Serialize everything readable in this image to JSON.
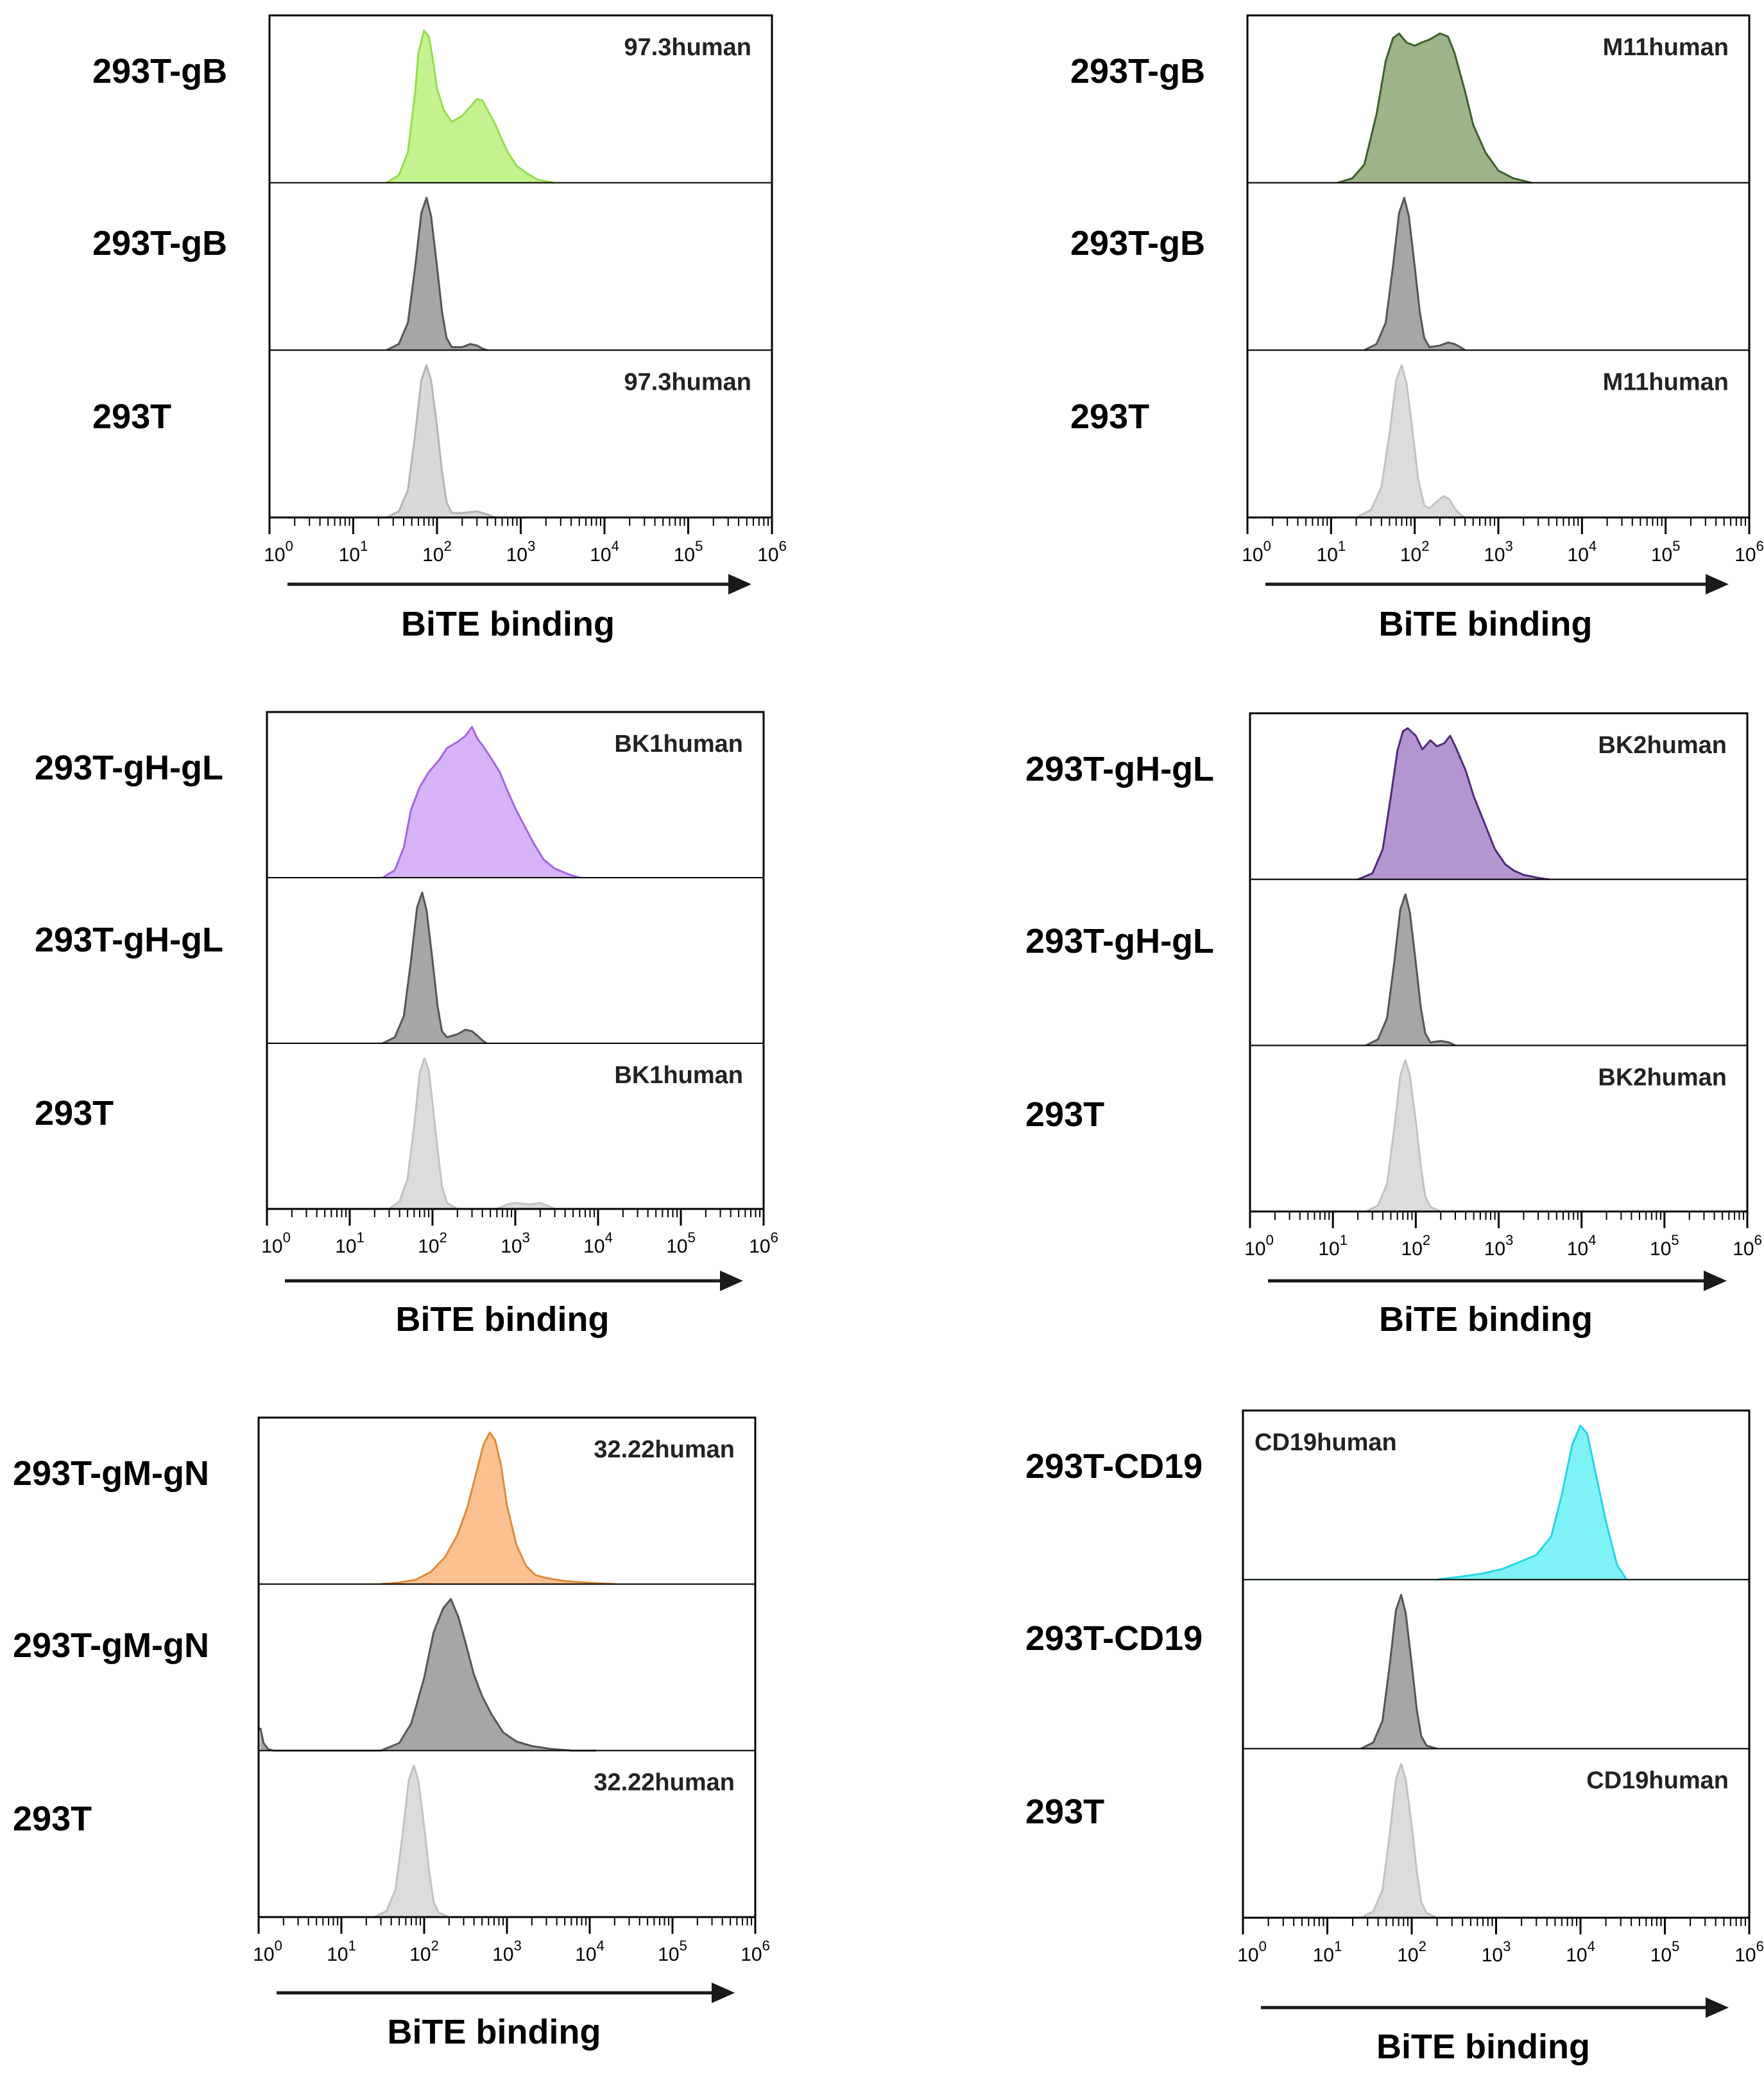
{
  "figure": {
    "x_axis_label": "BiTE binding",
    "tick_labels": [
      {
        "base": "10",
        "exp": "0"
      },
      {
        "base": "10",
        "exp": "1"
      },
      {
        "base": "10",
        "exp": "2"
      },
      {
        "base": "10",
        "exp": "3"
      },
      {
        "base": "10",
        "exp": "4"
      },
      {
        "base": "10",
        "exp": "5"
      },
      {
        "base": "10",
        "exp": "6"
      }
    ]
  },
  "chart_data": [
    {
      "type": "histogram",
      "panel": "top-left",
      "xlabel": "BiTE binding",
      "xscale": "log",
      "xlim": [
        1,
        1000000
      ],
      "tracks": [
        {
          "label": "293T-gB",
          "annotation": "97.3human",
          "annotation_pos": "right",
          "color": "#c3f28e",
          "stroke": "#95de4f",
          "x": [
            25,
            35,
            45,
            55,
            60,
            70,
            80,
            90,
            100,
            120,
            150,
            200,
            250,
            300,
            350,
            400,
            500,
            600,
            700,
            900,
            1200,
            1600,
            2500
          ],
          "y": [
            0,
            5,
            20,
            60,
            85,
            100,
            96,
            80,
            62,
            48,
            40,
            44,
            50,
            55,
            54,
            48,
            38,
            28,
            20,
            11,
            6,
            2,
            0
          ]
        },
        {
          "label": "293T-gB",
          "annotation": "",
          "color": "#a6a6a6",
          "stroke": "#555555",
          "x": [
            25,
            35,
            45,
            55,
            65,
            75,
            85,
            100,
            115,
            130,
            150,
            200,
            250,
            300,
            350,
            400
          ],
          "y": [
            0,
            4,
            18,
            55,
            90,
            100,
            88,
            55,
            25,
            8,
            2,
            2,
            4,
            3,
            1,
            0
          ]
        },
        {
          "label": "293T",
          "annotation": "97.3human",
          "annotation_pos": "right",
          "color": "#d9d9d9",
          "stroke": "#b5b5b5",
          "x": [
            25,
            35,
            45,
            55,
            65,
            75,
            85,
            100,
            115,
            130,
            150,
            200,
            300,
            400,
            500
          ],
          "y": [
            0,
            4,
            18,
            55,
            90,
            100,
            90,
            60,
            30,
            10,
            3,
            3,
            4,
            2,
            0
          ]
        }
      ]
    },
    {
      "type": "histogram",
      "panel": "top-right",
      "xlabel": "BiTE binding",
      "xscale": "log",
      "xlim": [
        1,
        1000000
      ],
      "tracks": [
        {
          "label": "293T-gB",
          "annotation": "M11human",
          "annotation_pos": "right",
          "color": "#9db38a",
          "stroke": "#3d5f2a",
          "x": [
            12,
            18,
            25,
            35,
            45,
            55,
            65,
            80,
            100,
            120,
            150,
            200,
            250,
            300,
            400,
            500,
            700,
            1000,
            1500,
            2500
          ],
          "y": [
            0,
            3,
            12,
            45,
            80,
            95,
            98,
            92,
            90,
            92,
            94,
            98,
            96,
            85,
            60,
            38,
            20,
            8,
            3,
            0
          ]
        },
        {
          "label": "293T-gB",
          "annotation": "",
          "color": "#a6a6a6",
          "stroke": "#555555",
          "x": [
            25,
            35,
            45,
            55,
            65,
            75,
            85,
            100,
            115,
            130,
            150,
            200,
            250,
            300,
            350,
            400
          ],
          "y": [
            0,
            4,
            18,
            55,
            90,
            100,
            88,
            55,
            25,
            8,
            2,
            3,
            5,
            4,
            2,
            0
          ]
        },
        {
          "label": "293T",
          "annotation": "M11human",
          "annotation_pos": "right",
          "color": "#dcdcdc",
          "stroke": "#c2c2c2",
          "x": [
            20,
            30,
            40,
            50,
            60,
            70,
            80,
            95,
            110,
            130,
            150,
            180,
            220,
            260,
            300,
            350,
            400
          ],
          "y": [
            0,
            5,
            20,
            55,
            90,
            100,
            88,
            55,
            25,
            8,
            6,
            10,
            14,
            12,
            6,
            2,
            0
          ]
        }
      ]
    },
    {
      "type": "histogram",
      "panel": "middle-left",
      "xlabel": "BiTE binding",
      "xscale": "log",
      "xlim": [
        1,
        1000000
      ],
      "tracks": [
        {
          "label": "293T-gH-gL",
          "annotation": "BK1human",
          "annotation_pos": "right",
          "color": "#d7b3f9",
          "stroke": "#a465e8",
          "x": [
            25,
            35,
            45,
            55,
            70,
            90,
            120,
            150,
            200,
            250,
            300,
            350,
            400,
            500,
            650,
            800,
            1000,
            1300,
            1700,
            2200,
            3000,
            4500,
            6000
          ],
          "y": [
            0,
            5,
            20,
            45,
            60,
            70,
            78,
            86,
            90,
            94,
            100,
            92,
            88,
            80,
            70,
            58,
            46,
            34,
            22,
            12,
            6,
            2,
            0
          ]
        },
        {
          "label": "293T-gH-gL",
          "annotation": "",
          "color": "#a6a6a6",
          "stroke": "#555555",
          "x": [
            25,
            35,
            45,
            55,
            65,
            75,
            85,
            100,
            115,
            130,
            150,
            200,
            250,
            300,
            350,
            400,
            450
          ],
          "y": [
            0,
            4,
            18,
            55,
            90,
            100,
            88,
            55,
            25,
            8,
            4,
            6,
            9,
            8,
            5,
            2,
            0
          ]
        },
        {
          "label": "293T",
          "annotation": "BK1human",
          "annotation_pos": "right",
          "color": "#dcdcdc",
          "stroke": "#c2c2c2",
          "x": [
            30,
            40,
            50,
            60,
            70,
            80,
            90,
            100,
            115,
            130,
            150,
            200,
            600,
            800,
            1000,
            1500,
            2000,
            2500,
            3000
          ],
          "y": [
            0,
            5,
            20,
            55,
            90,
            100,
            92,
            70,
            40,
            15,
            4,
            0,
            0,
            3,
            4,
            3,
            4,
            2,
            0
          ]
        }
      ]
    },
    {
      "type": "histogram",
      "panel": "middle-right",
      "xlabel": "BiTE binding",
      "xscale": "log",
      "xlim": [
        1,
        1000000
      ],
      "tracks": [
        {
          "label": "293T-gH-gL",
          "annotation": "BK2human",
          "annotation_pos": "right",
          "color": "#b495cf",
          "stroke": "#4e2b7a",
          "x": [
            20,
            30,
            40,
            50,
            60,
            70,
            80,
            100,
            120,
            150,
            180,
            220,
            260,
            300,
            400,
            500,
            700,
            900,
            1200,
            1500,
            2000,
            3000,
            4000
          ],
          "y": [
            0,
            4,
            20,
            55,
            85,
            98,
            100,
            95,
            86,
            92,
            88,
            90,
            95,
            88,
            72,
            55,
            35,
            20,
            10,
            6,
            3,
            1,
            0
          ]
        },
        {
          "label": "293T-gH-gL",
          "annotation": "",
          "color": "#a6a6a6",
          "stroke": "#555555",
          "x": [
            25,
            35,
            45,
            55,
            65,
            75,
            85,
            100,
            115,
            130,
            150,
            200,
            250,
            300
          ],
          "y": [
            0,
            4,
            18,
            55,
            90,
            100,
            88,
            55,
            25,
            8,
            2,
            3,
            2,
            0
          ]
        },
        {
          "label": "293T",
          "annotation": "BK2human",
          "annotation_pos": "right",
          "color": "#dcdcdc",
          "stroke": "#c2c2c2",
          "x": [
            25,
            35,
            45,
            55,
            65,
            75,
            85,
            100,
            115,
            130,
            150,
            200
          ],
          "y": [
            0,
            4,
            18,
            55,
            90,
            100,
            90,
            60,
            30,
            10,
            3,
            0
          ]
        }
      ]
    },
    {
      "type": "histogram",
      "panel": "bottom-left",
      "xlabel": "BiTE binding",
      "xscale": "log",
      "xlim": [
        1,
        1000000
      ],
      "tracks": [
        {
          "label": "293T-gM-gN",
          "annotation": "32.22human",
          "annotation_pos": "right",
          "color": "#fbc190",
          "stroke": "#e08a3c",
          "x": [
            30,
            50,
            80,
            120,
            180,
            250,
            330,
            420,
            520,
            620,
            720,
            850,
            1000,
            1300,
            1700,
            2200,
            3000,
            5000,
            9000,
            20000
          ],
          "y": [
            0,
            1,
            3,
            8,
            18,
            32,
            50,
            72,
            92,
            100,
            95,
            78,
            52,
            26,
            12,
            6,
            4,
            2,
            1,
            0
          ]
        },
        {
          "label": "293T-gM-gN",
          "annotation": "",
          "color": "#a6a6a6",
          "stroke": "#555555",
          "x": [
            1.05,
            1.15,
            1.3,
            1.5,
            30,
            50,
            70,
            100,
            130,
            170,
            210,
            260,
            320,
            400,
            500,
            650,
            900,
            1300,
            2000,
            3500,
            6000,
            12000
          ],
          "y": [
            15,
            5,
            1,
            0,
            0,
            5,
            18,
            48,
            78,
            94,
            100,
            88,
            70,
            50,
            36,
            24,
            12,
            6,
            3,
            1,
            0,
            0
          ]
        },
        {
          "label": "293T",
          "annotation": "32.22human",
          "annotation_pos": "right",
          "color": "#dcdcdc",
          "stroke": "#c2c2c2",
          "x": [
            25,
            35,
            45,
            55,
            65,
            75,
            85,
            100,
            115,
            130,
            150,
            200
          ],
          "y": [
            0,
            4,
            18,
            55,
            90,
            100,
            90,
            60,
            30,
            10,
            3,
            0
          ]
        }
      ]
    },
    {
      "type": "histogram",
      "panel": "bottom-right",
      "xlabel": "BiTE binding",
      "xscale": "log",
      "xlim": [
        1,
        1000000
      ],
      "tracks": [
        {
          "label": "293T-CD19",
          "annotation": "CD19human",
          "annotation_pos": "left",
          "color": "#7ff2f7",
          "stroke": "#25d6e5",
          "x": [
            200,
            400,
            700,
            1200,
            2000,
            3000,
            4500,
            6000,
            8000,
            10000,
            12000,
            15000,
            20000,
            27000,
            35000
          ],
          "y": [
            0,
            2,
            4,
            7,
            12,
            16,
            28,
            55,
            88,
            100,
            95,
            70,
            38,
            10,
            0
          ]
        },
        {
          "label": "293T-CD19",
          "annotation": "",
          "color": "#a6a6a6",
          "stroke": "#555555",
          "x": [
            25,
            35,
            45,
            55,
            65,
            75,
            85,
            100,
            115,
            130,
            150,
            200
          ],
          "y": [
            0,
            4,
            18,
            55,
            90,
            100,
            88,
            55,
            25,
            8,
            2,
            0
          ]
        },
        {
          "label": "293T",
          "annotation": "CD19human",
          "annotation_pos": "right",
          "color": "#dcdcdc",
          "stroke": "#c2c2c2",
          "x": [
            25,
            35,
            45,
            55,
            65,
            75,
            85,
            100,
            115,
            130,
            150,
            200
          ],
          "y": [
            0,
            4,
            18,
            55,
            90,
            100,
            90,
            60,
            30,
            10,
            3,
            0
          ]
        }
      ]
    }
  ]
}
